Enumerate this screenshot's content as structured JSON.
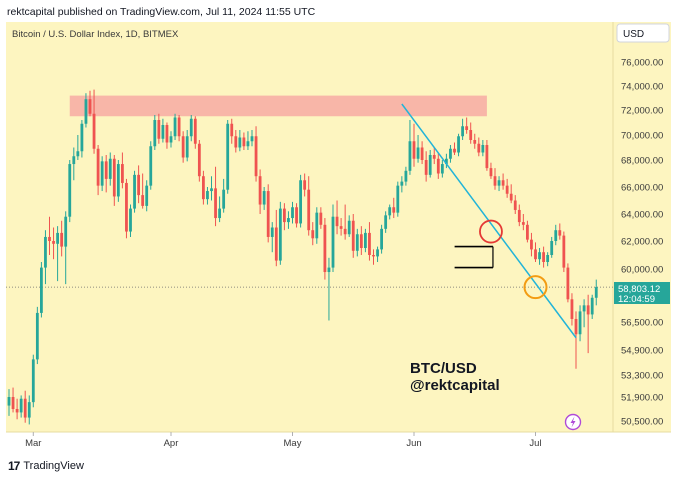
{
  "header": {
    "published": "rektcapital published on TradingView.com, Jul 11, 2024 11:55 UTC"
  },
  "footer": {
    "brand": "TradingView",
    "logo_icon": "tradingview-logo-icon"
  },
  "chart_data": {
    "type": "candlestick",
    "title": "Bitcoin / U.S. Dollar Index, 1D, BITMEX",
    "currency": "USD",
    "watermark": [
      "BTC/USD",
      "@rektcapital"
    ],
    "x_labels": [
      "Mar",
      "Apr",
      "May",
      "Jun",
      "Jul"
    ],
    "y_ticks": [
      {
        "value": 76000,
        "label": "76,000.00"
      },
      {
        "value": 74000,
        "label": "74,000.00"
      },
      {
        "value": 72000,
        "label": "72,000.00"
      },
      {
        "value": 70000,
        "label": "70,000.00"
      },
      {
        "value": 68000,
        "label": "68,000.00"
      },
      {
        "value": 66000,
        "label": "66,000.00"
      },
      {
        "value": 64000,
        "label": "64,000.00"
      },
      {
        "value": 62000,
        "label": "62,000.00"
      },
      {
        "value": 60000,
        "label": "60,000.00"
      },
      {
        "value": 56500,
        "label": "56,500.00"
      },
      {
        "value": 54900,
        "label": "54,900.00"
      },
      {
        "value": 53300,
        "label": "53,300.00"
      },
      {
        "value": 51900,
        "label": "51,900.00"
      },
      {
        "value": 50500,
        "label": "50,500.00"
      }
    ],
    "current_price": {
      "value": 58803.12,
      "label": "58,803.12",
      "countdown": "12:04:59"
    },
    "colors": {
      "background": "#fdf5c0",
      "up": "#26a69a",
      "down": "#ef5350",
      "trendline": "#22b4d8",
      "resistance_zone": "#f8b6a8",
      "price_tag": "#26a69a",
      "circle_red": "#e53935",
      "circle_orange": "#f39c12"
    },
    "annotations": {
      "resistance_zone": {
        "from_day": 15,
        "to_day": 118,
        "low": 71500,
        "high": 73200
      },
      "trendline": {
        "start": {
          "day": 97,
          "price": 72500
        },
        "end": {
          "day": 140,
          "price": 55600
        }
      },
      "range_box": {
        "from_day": 112,
        "to_day": 119,
        "high": 61600,
        "low": 60100
      },
      "red_circle": {
        "day": 119,
        "price": 62700
      },
      "orange_circle": {
        "day": 130,
        "price": 58800
      }
    },
    "candles": [
      {
        "o": 51400,
        "h": 52400,
        "l": 50800,
        "c": 51900
      },
      {
        "o": 51900,
        "h": 52500,
        "l": 51000,
        "c": 51200
      },
      {
        "o": 51200,
        "h": 51800,
        "l": 50600,
        "c": 51000
      },
      {
        "o": 51000,
        "h": 52000,
        "l": 50700,
        "c": 51800
      },
      {
        "o": 51800,
        "h": 52300,
        "l": 50400,
        "c": 50700
      },
      {
        "o": 50700,
        "h": 52000,
        "l": 50300,
        "c": 51600
      },
      {
        "o": 51600,
        "h": 54600,
        "l": 51300,
        "c": 54300
      },
      {
        "o": 54300,
        "h": 57500,
        "l": 54000,
        "c": 57100
      },
      {
        "o": 57100,
        "h": 60500,
        "l": 56800,
        "c": 60100
      },
      {
        "o": 60100,
        "h": 62800,
        "l": 59000,
        "c": 62300
      },
      {
        "o": 62300,
        "h": 63800,
        "l": 61000,
        "c": 62000
      },
      {
        "o": 62000,
        "h": 63000,
        "l": 60700,
        "c": 61800
      },
      {
        "o": 61800,
        "h": 63100,
        "l": 59200,
        "c": 62600
      },
      {
        "o": 62600,
        "h": 63500,
        "l": 60900,
        "c": 61600
      },
      {
        "o": 61600,
        "h": 64200,
        "l": 59000,
        "c": 63800
      },
      {
        "o": 63800,
        "h": 68000,
        "l": 63400,
        "c": 67700
      },
      {
        "o": 67700,
        "h": 69000,
        "l": 66500,
        "c": 68300
      },
      {
        "o": 68300,
        "h": 70000,
        "l": 68000,
        "c": 68700
      },
      {
        "o": 68700,
        "h": 71200,
        "l": 68200,
        "c": 70900
      },
      {
        "o": 70900,
        "h": 73400,
        "l": 70600,
        "c": 72900
      },
      {
        "o": 72900,
        "h": 73600,
        "l": 71500,
        "c": 71700
      },
      {
        "o": 71700,
        "h": 73700,
        "l": 68500,
        "c": 68900
      },
      {
        "o": 68900,
        "h": 69200,
        "l": 65400,
        "c": 66100
      },
      {
        "o": 66100,
        "h": 68300,
        "l": 65700,
        "c": 67900
      },
      {
        "o": 67900,
        "h": 68400,
        "l": 65600,
        "c": 66600
      },
      {
        "o": 66600,
        "h": 68600,
        "l": 66100,
        "c": 68100
      },
      {
        "o": 68100,
        "h": 68400,
        "l": 64600,
        "c": 65300
      },
      {
        "o": 65300,
        "h": 68000,
        "l": 64900,
        "c": 67700
      },
      {
        "o": 67700,
        "h": 68600,
        "l": 65900,
        "c": 66300
      },
      {
        "o": 66300,
        "h": 66600,
        "l": 62200,
        "c": 62700
      },
      {
        "o": 62700,
        "h": 64700,
        "l": 62300,
        "c": 64400
      },
      {
        "o": 64400,
        "h": 67200,
        "l": 64100,
        "c": 66900
      },
      {
        "o": 66900,
        "h": 67600,
        "l": 64800,
        "c": 65400
      },
      {
        "o": 65400,
        "h": 67000,
        "l": 64400,
        "c": 64600
      },
      {
        "o": 64600,
        "h": 66500,
        "l": 64200,
        "c": 66100
      },
      {
        "o": 66100,
        "h": 69500,
        "l": 65800,
        "c": 69100
      },
      {
        "o": 69100,
        "h": 71600,
        "l": 68800,
        "c": 71200
      },
      {
        "o": 71200,
        "h": 71700,
        "l": 69300,
        "c": 69700
      },
      {
        "o": 69700,
        "h": 71300,
        "l": 69400,
        "c": 70800
      },
      {
        "o": 70800,
        "h": 71000,
        "l": 68900,
        "c": 69400
      },
      {
        "o": 69400,
        "h": 70300,
        "l": 69000,
        "c": 69900
      },
      {
        "o": 69900,
        "h": 71700,
        "l": 69600,
        "c": 71400
      },
      {
        "o": 71400,
        "h": 71600,
        "l": 69500,
        "c": 69900
      },
      {
        "o": 69900,
        "h": 70300,
        "l": 67800,
        "c": 68200
      },
      {
        "o": 68200,
        "h": 70400,
        "l": 67900,
        "c": 69900
      },
      {
        "o": 69900,
        "h": 71600,
        "l": 69500,
        "c": 71300
      },
      {
        "o": 71300,
        "h": 71500,
        "l": 68900,
        "c": 69300
      },
      {
        "o": 69300,
        "h": 69600,
        "l": 66400,
        "c": 66800
      },
      {
        "o": 66800,
        "h": 67200,
        "l": 64700,
        "c": 65100
      },
      {
        "o": 65100,
        "h": 66000,
        "l": 64700,
        "c": 65700
      },
      {
        "o": 65700,
        "h": 66800,
        "l": 65000,
        "c": 65900
      },
      {
        "o": 65900,
        "h": 67500,
        "l": 63100,
        "c": 63700
      },
      {
        "o": 63700,
        "h": 65300,
        "l": 63400,
        "c": 64400
      },
      {
        "o": 64400,
        "h": 66600,
        "l": 64100,
        "c": 65800
      },
      {
        "o": 65800,
        "h": 71200,
        "l": 65500,
        "c": 70900
      },
      {
        "o": 70900,
        "h": 71300,
        "l": 69300,
        "c": 69900
      },
      {
        "o": 69900,
        "h": 70400,
        "l": 68600,
        "c": 69000
      },
      {
        "o": 69000,
        "h": 70400,
        "l": 68700,
        "c": 69800
      },
      {
        "o": 69800,
        "h": 70200,
        "l": 68800,
        "c": 69100
      },
      {
        "o": 69100,
        "h": 70300,
        "l": 68800,
        "c": 69500
      },
      {
        "o": 69500,
        "h": 70400,
        "l": 69100,
        "c": 69900
      },
      {
        "o": 69900,
        "h": 70700,
        "l": 66400,
        "c": 66800
      },
      {
        "o": 66800,
        "h": 67300,
        "l": 64000,
        "c": 64700
      },
      {
        "o": 64700,
        "h": 66000,
        "l": 64300,
        "c": 65700
      },
      {
        "o": 65700,
        "h": 66200,
        "l": 61900,
        "c": 62300
      },
      {
        "o": 62300,
        "h": 63400,
        "l": 61200,
        "c": 63000
      },
      {
        "o": 63000,
        "h": 64300,
        "l": 60200,
        "c": 60600
      },
      {
        "o": 60600,
        "h": 64900,
        "l": 60300,
        "c": 64400
      },
      {
        "o": 64400,
        "h": 64800,
        "l": 62800,
        "c": 63400
      },
      {
        "o": 63400,
        "h": 64200,
        "l": 62900,
        "c": 63700
      },
      {
        "o": 63700,
        "h": 64900,
        "l": 63300,
        "c": 64500
      },
      {
        "o": 64500,
        "h": 64800,
        "l": 63000,
        "c": 63300
      },
      {
        "o": 63300,
        "h": 66900,
        "l": 63000,
        "c": 66500
      },
      {
        "o": 66500,
        "h": 67000,
        "l": 65300,
        "c": 65800
      },
      {
        "o": 65800,
        "h": 66800,
        "l": 62400,
        "c": 62800
      },
      {
        "o": 62800,
        "h": 63400,
        "l": 61700,
        "c": 62200
      },
      {
        "o": 62200,
        "h": 64500,
        "l": 61800,
        "c": 64100
      },
      {
        "o": 64100,
        "h": 64500,
        "l": 62900,
        "c": 63200
      },
      {
        "o": 63200,
        "h": 63700,
        "l": 59300,
        "c": 59800
      },
      {
        "o": 59800,
        "h": 60800,
        "l": 56600,
        "c": 60100
      },
      {
        "o": 60100,
        "h": 64700,
        "l": 59800,
        "c": 63800
      },
      {
        "o": 63800,
        "h": 65000,
        "l": 62500,
        "c": 63100
      },
      {
        "o": 63100,
        "h": 63700,
        "l": 62400,
        "c": 62900
      },
      {
        "o": 62900,
        "h": 64700,
        "l": 62100,
        "c": 62500
      },
      {
        "o": 62500,
        "h": 63900,
        "l": 62300,
        "c": 63500
      },
      {
        "o": 63500,
        "h": 64000,
        "l": 60800,
        "c": 61300
      },
      {
        "o": 61300,
        "h": 62900,
        "l": 60900,
        "c": 62500
      },
      {
        "o": 62500,
        "h": 63100,
        "l": 61000,
        "c": 61500
      },
      {
        "o": 61500,
        "h": 62900,
        "l": 61200,
        "c": 62600
      },
      {
        "o": 62600,
        "h": 63400,
        "l": 60600,
        "c": 61000
      },
      {
        "o": 61000,
        "h": 61400,
        "l": 60300,
        "c": 60900
      },
      {
        "o": 60900,
        "h": 61600,
        "l": 60500,
        "c": 61400
      },
      {
        "o": 61400,
        "h": 63200,
        "l": 61100,
        "c": 62900
      },
      {
        "o": 62900,
        "h": 64200,
        "l": 62600,
        "c": 63900
      },
      {
        "o": 63900,
        "h": 64700,
        "l": 63600,
        "c": 64500
      },
      {
        "o": 64500,
        "h": 65200,
        "l": 63700,
        "c": 64100
      },
      {
        "o": 64100,
        "h": 66400,
        "l": 63800,
        "c": 66100
      },
      {
        "o": 66100,
        "h": 66800,
        "l": 65600,
        "c": 66400
      },
      {
        "o": 66400,
        "h": 67500,
        "l": 66100,
        "c": 67200
      },
      {
        "o": 67200,
        "h": 71200,
        "l": 66900,
        "c": 69500
      },
      {
        "o": 69500,
        "h": 70900,
        "l": 67500,
        "c": 68100
      },
      {
        "o": 68100,
        "h": 70000,
        "l": 67800,
        "c": 69000
      },
      {
        "o": 69000,
        "h": 69500,
        "l": 67700,
        "c": 68000
      },
      {
        "o": 68000,
        "h": 68700,
        "l": 66400,
        "c": 66900
      },
      {
        "o": 66900,
        "h": 68800,
        "l": 66700,
        "c": 68400
      },
      {
        "o": 68400,
        "h": 69000,
        "l": 67700,
        "c": 68100
      },
      {
        "o": 68100,
        "h": 68600,
        "l": 66600,
        "c": 67000
      },
      {
        "o": 67000,
        "h": 68000,
        "l": 66700,
        "c": 67700
      },
      {
        "o": 67700,
        "h": 68500,
        "l": 67400,
        "c": 68100
      },
      {
        "o": 68100,
        "h": 69200,
        "l": 67800,
        "c": 68900
      },
      {
        "o": 68900,
        "h": 69400,
        "l": 68400,
        "c": 68600
      },
      {
        "o": 68600,
        "h": 70100,
        "l": 68300,
        "c": 69900
      },
      {
        "o": 69900,
        "h": 71300,
        "l": 69600,
        "c": 70700
      },
      {
        "o": 70700,
        "h": 71400,
        "l": 70100,
        "c": 70400
      },
      {
        "o": 70400,
        "h": 71000,
        "l": 69300,
        "c": 69600
      },
      {
        "o": 69600,
        "h": 70100,
        "l": 68900,
        "c": 69300
      },
      {
        "o": 69300,
        "h": 69800,
        "l": 68300,
        "c": 68600
      },
      {
        "o": 68600,
        "h": 69600,
        "l": 68300,
        "c": 69200
      },
      {
        "o": 69200,
        "h": 69600,
        "l": 67200,
        "c": 67400
      },
      {
        "o": 67400,
        "h": 67800,
        "l": 66600,
        "c": 66800
      },
      {
        "o": 66800,
        "h": 67400,
        "l": 65800,
        "c": 66100
      },
      {
        "o": 66100,
        "h": 66800,
        "l": 65700,
        "c": 66500
      },
      {
        "o": 66500,
        "h": 67000,
        "l": 65800,
        "c": 66100
      },
      {
        "o": 66100,
        "h": 66600,
        "l": 65200,
        "c": 65500
      },
      {
        "o": 65500,
        "h": 66200,
        "l": 64800,
        "c": 65000
      },
      {
        "o": 65000,
        "h": 65400,
        "l": 64000,
        "c": 64300
      },
      {
        "o": 64300,
        "h": 64700,
        "l": 63100,
        "c": 63400
      },
      {
        "o": 63400,
        "h": 64000,
        "l": 62800,
        "c": 63200
      },
      {
        "o": 63200,
        "h": 63500,
        "l": 61900,
        "c": 62100
      },
      {
        "o": 62100,
        "h": 62600,
        "l": 60900,
        "c": 61400
      },
      {
        "o": 61400,
        "h": 61900,
        "l": 60500,
        "c": 60700
      },
      {
        "o": 60700,
        "h": 61500,
        "l": 60300,
        "c": 61200
      },
      {
        "o": 61200,
        "h": 61600,
        "l": 60100,
        "c": 60500
      },
      {
        "o": 60500,
        "h": 61200,
        "l": 60200,
        "c": 61000
      },
      {
        "o": 61000,
        "h": 62300,
        "l": 60800,
        "c": 62000
      },
      {
        "o": 62000,
        "h": 63200,
        "l": 61700,
        "c": 62800
      },
      {
        "o": 62800,
        "h": 63300,
        "l": 62100,
        "c": 62400
      },
      {
        "o": 62400,
        "h": 62700,
        "l": 59800,
        "c": 60100
      },
      {
        "o": 60100,
        "h": 60400,
        "l": 57800,
        "c": 58000
      },
      {
        "o": 58000,
        "h": 58400,
        "l": 56300,
        "c": 56700
      },
      {
        "o": 56700,
        "h": 57200,
        "l": 53700,
        "c": 55800
      },
      {
        "o": 55800,
        "h": 57600,
        "l": 55400,
        "c": 57200
      },
      {
        "o": 57200,
        "h": 58000,
        "l": 56200,
        "c": 57600
      },
      {
        "o": 57600,
        "h": 58300,
        "l": 54700,
        "c": 57000
      },
      {
        "o": 57000,
        "h": 58300,
        "l": 56700,
        "c": 58100
      },
      {
        "o": 58100,
        "h": 59300,
        "l": 57600,
        "c": 58803
      }
    ]
  }
}
